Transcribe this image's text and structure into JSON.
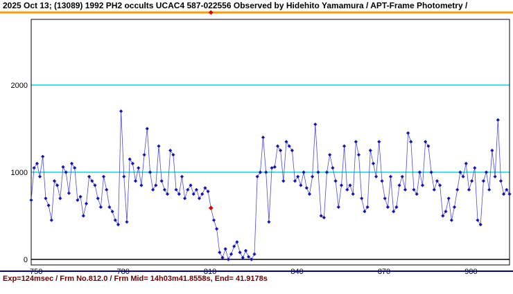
{
  "header": {
    "title": "2025 Oct 13; (13089) 1992 PH2 occults UCAC4 587-022556 Observed by Hidehito Yamamura / APT-Frame Photometry /"
  },
  "status": {
    "text": "Exp=124msec / Frm No.812.0 / Frm Mid= 14h03m41.8558s,  End= 41.9178s"
  },
  "colors": {
    "line": "#4848e8",
    "point": "#1414b4",
    "grid": "#00dcdc",
    "top_bar": "#ff9c00",
    "marker": "#e00000",
    "separator": "#0000a0",
    "status_text": "#6b0000",
    "axis": "#000000"
  },
  "chart_data": {
    "type": "line",
    "title": "",
    "x_start": 750,
    "x_step": 1,
    "x_end": 915,
    "x_ticks": [
      750,
      780,
      810,
      840,
      870,
      900
    ],
    "y_ticks": [
      0,
      1000,
      2000
    ],
    "ylim": [
      0,
      2750
    ],
    "gridlines_cyan": [
      1000,
      2000
    ],
    "legend": "none",
    "current_frame": 812,
    "current_value": 590,
    "values": [
      680,
      1050,
      1100,
      950,
      1180,
      700,
      620,
      450,
      900,
      850,
      700,
      1060,
      1000,
      760,
      1100,
      1050,
      680,
      720,
      500,
      640,
      950,
      900,
      850,
      700,
      600,
      950,
      800,
      600,
      550,
      450,
      400,
      1700,
      950,
      430,
      1150,
      1100,
      900,
      1050,
      850,
      1200,
      1500,
      1000,
      800,
      850,
      1300,
      900,
      800,
      750,
      1250,
      1200,
      800,
      750,
      950,
      700,
      800,
      850,
      750,
      800,
      700,
      750,
      820,
      780,
      590,
      450,
      350,
      80,
      20,
      120,
      0,
      60,
      150,
      200,
      80,
      20,
      100,
      30,
      0,
      60,
      950,
      1000,
      1400,
      1000,
      430,
      1050,
      1060,
      1300,
      1250,
      900,
      1350,
      1300,
      1250,
      900,
      950,
      850,
      1000,
      820,
      750,
      950,
      1550,
      1000,
      500,
      480,
      1000,
      1200,
      1050,
      900,
      600,
      850,
      1300,
      800,
      850,
      750,
      1350,
      1200,
      700,
      550,
      600,
      1250,
      1100,
      950,
      1350,
      900,
      700,
      600,
      950,
      550,
      600,
      850,
      950,
      800,
      1450,
      1350,
      800,
      750,
      1000,
      850,
      1350,
      1300,
      1000,
      800,
      900,
      850,
      500,
      550,
      700,
      450,
      600,
      800,
      1000,
      950,
      1100,
      800,
      900,
      1050,
      450,
      400,
      900,
      1000,
      800,
      1250,
      950,
      1600,
      900,
      750,
      800,
      750
    ]
  }
}
